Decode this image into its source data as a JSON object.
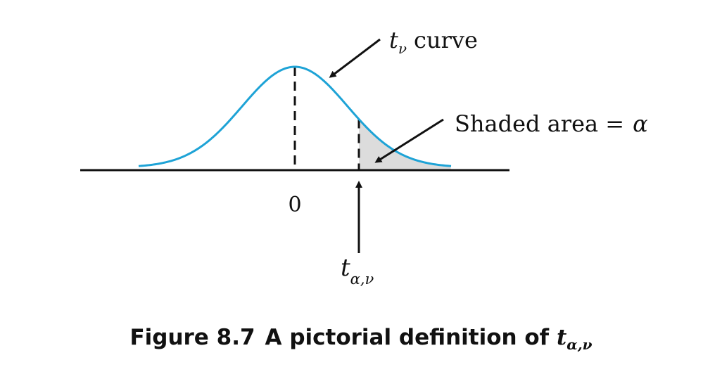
{
  "figure": {
    "curve_label": {
      "symbol": "t",
      "subscript": "ν",
      "text": "curve"
    },
    "shaded_label": {
      "text": "Shaded area =",
      "symbol": "α"
    },
    "zero_label": "0",
    "critical_label": {
      "symbol": "t",
      "subscript": "α,ν"
    },
    "caption": {
      "number": "Figure 8.7",
      "text": "A pictorial definition of",
      "symbol": "t",
      "subscript": "α,ν"
    },
    "colors": {
      "curve": "#1ea3d6",
      "shade": "#dcdcdc",
      "ink": "#111111"
    }
  }
}
